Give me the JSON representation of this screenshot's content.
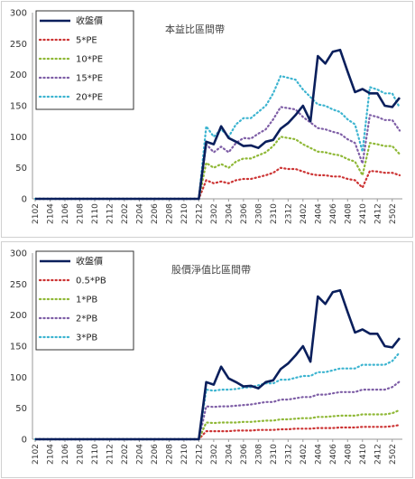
{
  "chart_data": [
    {
      "type": "line",
      "title": "本益比區間帶",
      "ylim": [
        0,
        300
      ],
      "yticks": [
        0,
        50,
        100,
        150,
        200,
        250,
        300
      ],
      "x": [
        "2102",
        "2103",
        "2104",
        "2105",
        "2106",
        "2107",
        "2108",
        "2109",
        "2110",
        "2111",
        "2112",
        "2201",
        "2202",
        "2203",
        "2204",
        "2205",
        "2206",
        "2207",
        "2208",
        "2209",
        "2210",
        "2211",
        "2212",
        "2301",
        "2302",
        "2303",
        "2304",
        "2305",
        "2306",
        "2307",
        "2308",
        "2309",
        "2310",
        "2311",
        "2312",
        "2401",
        "2402",
        "2403",
        "2404",
        "2405",
        "2406",
        "2407",
        "2408",
        "2409",
        "2410",
        "2411",
        "2412",
        "2501",
        "2502",
        "2503"
      ],
      "xtick_labels": [
        "2102",
        "2104",
        "2106",
        "2108",
        "2110",
        "2112",
        "2202",
        "2204",
        "2206",
        "2208",
        "2210",
        "2212",
        "2302",
        "2304",
        "2306",
        "2308",
        "2310",
        "2312",
        "2402",
        "2404",
        "2406",
        "2408",
        "2410",
        "2412",
        "2502"
      ],
      "legend_position": "top-left",
      "series": [
        {
          "name": "收盤價",
          "color": "#0a1f5c",
          "style": "solid",
          "values": [
            0,
            0,
            0,
            0,
            0,
            0,
            0,
            0,
            0,
            0,
            0,
            0,
            0,
            0,
            0,
            0,
            0,
            0,
            0,
            0,
            0,
            0,
            0,
            92,
            88,
            117,
            98,
            92,
            85,
            86,
            82,
            92,
            95,
            113,
            122,
            135,
            150,
            125,
            230,
            218,
            237,
            240,
            205,
            172,
            177,
            170,
            170,
            150,
            148,
            163
          ]
        },
        {
          "name": "5*PE",
          "color": "#cc3333",
          "style": "dotted",
          "values": [
            0,
            0,
            0,
            0,
            0,
            0,
            0,
            0,
            0,
            0,
            0,
            0,
            0,
            0,
            0,
            0,
            0,
            0,
            0,
            0,
            0,
            0,
            0,
            30,
            25,
            28,
            25,
            30,
            32,
            32,
            35,
            38,
            42,
            50,
            48,
            48,
            44,
            40,
            38,
            38,
            36,
            36,
            32,
            30,
            18,
            45,
            44,
            42,
            42,
            38
          ]
        },
        {
          "name": "10*PE",
          "color": "#8fb836",
          "style": "dotted",
          "values": [
            0,
            0,
            0,
            0,
            0,
            0,
            0,
            0,
            0,
            0,
            0,
            0,
            0,
            0,
            0,
            0,
            0,
            0,
            0,
            0,
            0,
            0,
            0,
            58,
            50,
            56,
            50,
            60,
            65,
            65,
            70,
            75,
            85,
            100,
            98,
            96,
            88,
            82,
            76,
            75,
            72,
            70,
            64,
            60,
            38,
            90,
            88,
            85,
            85,
            72
          ]
        },
        {
          "name": "15*PE",
          "color": "#7e5ea6",
          "style": "dotted",
          "values": [
            0,
            0,
            0,
            0,
            0,
            0,
            0,
            0,
            0,
            0,
            0,
            0,
            0,
            0,
            0,
            0,
            0,
            0,
            0,
            0,
            0,
            0,
            0,
            88,
            75,
            84,
            75,
            90,
            98,
            97,
            105,
            112,
            128,
            148,
            146,
            144,
            132,
            123,
            114,
            112,
            108,
            105,
            96,
            90,
            57,
            135,
            132,
            127,
            127,
            110
          ]
        },
        {
          "name": "20*PE",
          "color": "#3cb4d0",
          "style": "dotted",
          "values": [
            0,
            0,
            0,
            0,
            0,
            0,
            0,
            0,
            0,
            0,
            0,
            0,
            0,
            0,
            0,
            0,
            0,
            0,
            0,
            0,
            0,
            0,
            0,
            117,
            100,
            112,
            100,
            120,
            130,
            130,
            140,
            150,
            170,
            198,
            195,
            192,
            176,
            164,
            152,
            150,
            144,
            140,
            128,
            120,
            76,
            180,
            176,
            170,
            170,
            147
          ]
        }
      ]
    },
    {
      "type": "line",
      "title": "股價淨值比區間帶",
      "ylim": [
        0,
        300
      ],
      "yticks": [
        0,
        50,
        100,
        150,
        200,
        250,
        300
      ],
      "x": [
        "2102",
        "2103",
        "2104",
        "2105",
        "2106",
        "2107",
        "2108",
        "2109",
        "2110",
        "2111",
        "2112",
        "2201",
        "2202",
        "2203",
        "2204",
        "2205",
        "2206",
        "2207",
        "2208",
        "2209",
        "2210",
        "2211",
        "2212",
        "2301",
        "2302",
        "2303",
        "2304",
        "2305",
        "2306",
        "2307",
        "2308",
        "2309",
        "2310",
        "2311",
        "2312",
        "2401",
        "2402",
        "2403",
        "2404",
        "2405",
        "2406",
        "2407",
        "2408",
        "2409",
        "2410",
        "2411",
        "2412",
        "2501",
        "2502",
        "2503"
      ],
      "xtick_labels": [
        "2102",
        "2104",
        "2106",
        "2108",
        "2110",
        "2112",
        "2202",
        "2204",
        "2206",
        "2208",
        "2210",
        "2212",
        "2302",
        "2304",
        "2306",
        "2308",
        "2310",
        "2312",
        "2402",
        "2404",
        "2406",
        "2408",
        "2410",
        "2412",
        "2502"
      ],
      "legend_position": "top-left",
      "series": [
        {
          "name": "收盤價",
          "color": "#0a1f5c",
          "style": "solid",
          "values": [
            0,
            0,
            0,
            0,
            0,
            0,
            0,
            0,
            0,
            0,
            0,
            0,
            0,
            0,
            0,
            0,
            0,
            0,
            0,
            0,
            0,
            0,
            0,
            92,
            88,
            117,
            98,
            92,
            85,
            86,
            82,
            92,
            95,
            113,
            122,
            135,
            150,
            125,
            230,
            218,
            237,
            240,
            205,
            172,
            177,
            170,
            170,
            150,
            148,
            163
          ]
        },
        {
          "name": "0.5*PB",
          "color": "#cc3333",
          "style": "dotted",
          "values": [
            0,
            0,
            0,
            0,
            0,
            0,
            0,
            0,
            0,
            0,
            0,
            0,
            0,
            0,
            0,
            0,
            0,
            0,
            0,
            0,
            0,
            0,
            0,
            13,
            13,
            13,
            13,
            14,
            14,
            14,
            15,
            15,
            15,
            16,
            16,
            17,
            17,
            17,
            18,
            18,
            18,
            19,
            19,
            19,
            20,
            20,
            20,
            20,
            21,
            23
          ]
        },
        {
          "name": "1*PB",
          "color": "#8fb836",
          "style": "dotted",
          "values": [
            0,
            0,
            0,
            0,
            0,
            0,
            0,
            0,
            0,
            0,
            0,
            0,
            0,
            0,
            0,
            0,
            0,
            0,
            0,
            0,
            0,
            0,
            0,
            27,
            26,
            27,
            27,
            27,
            28,
            28,
            29,
            30,
            30,
            32,
            32,
            33,
            34,
            34,
            36,
            36,
            37,
            38,
            38,
            38,
            40,
            40,
            40,
            40,
            42,
            47
          ]
        },
        {
          "name": "2*PB",
          "color": "#7e5ea6",
          "style": "dotted",
          "values": [
            0,
            0,
            0,
            0,
            0,
            0,
            0,
            0,
            0,
            0,
            0,
            0,
            0,
            0,
            0,
            0,
            0,
            0,
            0,
            0,
            0,
            0,
            0,
            53,
            52,
            53,
            53,
            54,
            55,
            56,
            58,
            60,
            60,
            64,
            64,
            66,
            68,
            68,
            72,
            72,
            74,
            76,
            76,
            76,
            80,
            80,
            80,
            80,
            84,
            93
          ]
        },
        {
          "name": "3*PB",
          "color": "#3cb4d0",
          "style": "dotted",
          "values": [
            0,
            0,
            0,
            0,
            0,
            0,
            0,
            0,
            0,
            0,
            0,
            0,
            0,
            0,
            0,
            0,
            0,
            0,
            0,
            0,
            0,
            0,
            0,
            80,
            78,
            80,
            80,
            81,
            83,
            84,
            87,
            90,
            90,
            96,
            96,
            99,
            102,
            102,
            108,
            108,
            111,
            114,
            114,
            114,
            120,
            120,
            120,
            120,
            126,
            140
          ]
        }
      ]
    }
  ]
}
